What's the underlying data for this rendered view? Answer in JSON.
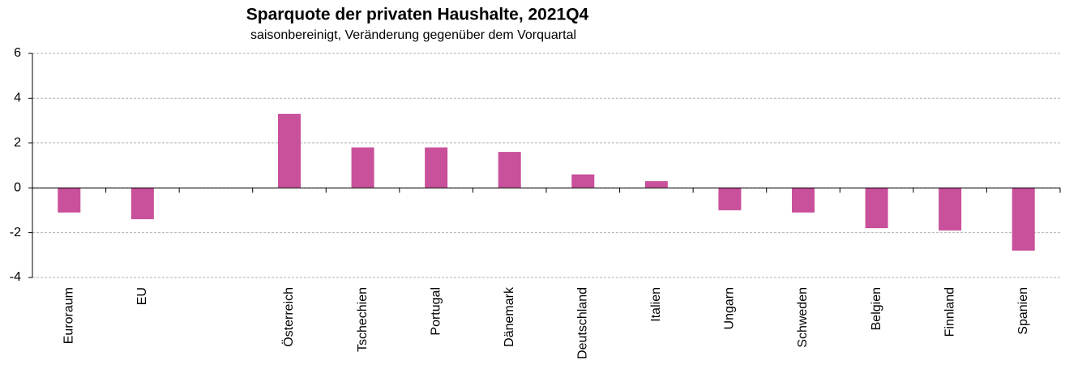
{
  "chart_data": {
    "type": "bar",
    "title": "Sparquote der privaten Haushalte, 2021Q4",
    "subtitle": "saisonbereinigt, Veränderung gegenüber dem Vorquartal",
    "categories": [
      "Euroraum",
      "EU",
      null,
      "Österreich",
      "Tschechien",
      "Portugal",
      "Dänemark",
      "Deutschland",
      "Italien",
      "Ungarn",
      "Schweden",
      "Belgien",
      "Finnland",
      "Spanien"
    ],
    "values": [
      -1.1,
      -1.4,
      null,
      3.3,
      1.8,
      1.8,
      1.6,
      0.6,
      0.3,
      -1.0,
      -1.1,
      -1.8,
      -1.9,
      -2.8
    ],
    "color": "#c9509a",
    "ylim": [
      -4,
      6
    ],
    "yticks": [
      -4,
      -2,
      0,
      2,
      4,
      6
    ],
    "grid": true
  }
}
